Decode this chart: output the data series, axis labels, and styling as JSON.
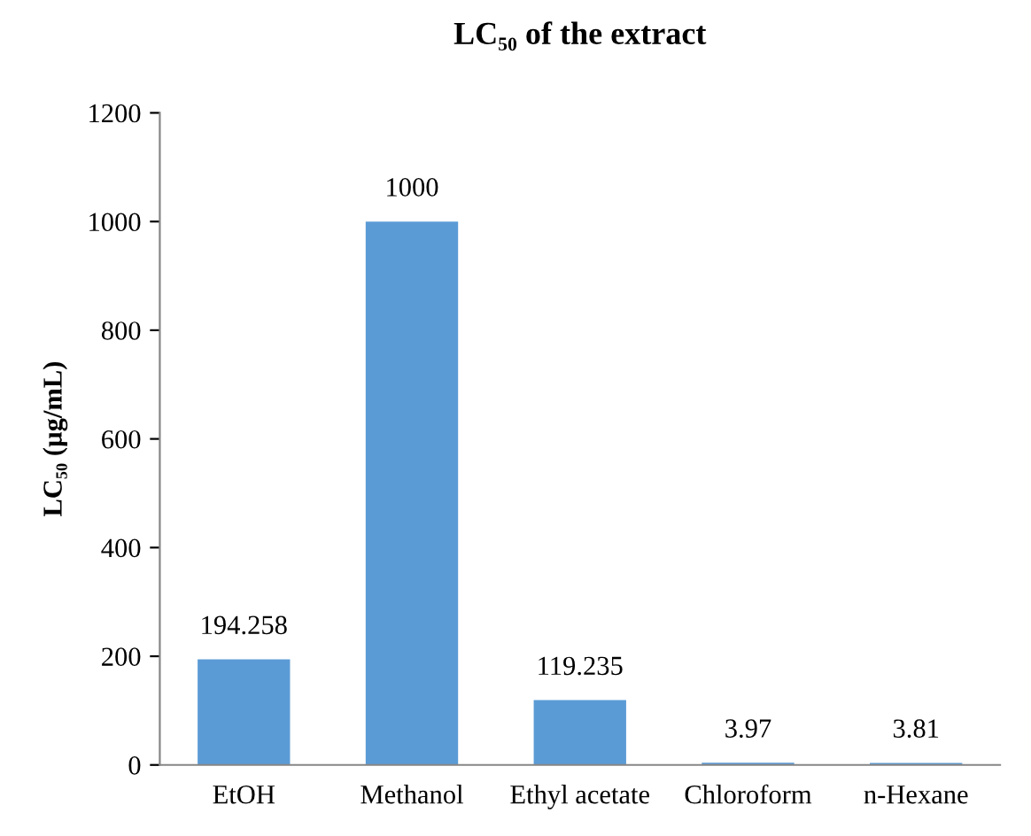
{
  "chart_data": {
    "type": "bar",
    "title": "LC₅₀ of the extract",
    "ylabel": "LC₅₀ (µg/mL)",
    "categories": [
      "EtOH",
      "Methanol",
      "Ethyl acetate",
      "Chloroform",
      "n-Hexane"
    ],
    "values": [
      194.258,
      1000,
      119.235,
      3.97,
      3.81
    ],
    "color": "#5b9bd5",
    "ylim": [
      0,
      1200
    ],
    "yticks": [
      0,
      200,
      400,
      600,
      800,
      1000,
      1200
    ],
    "data_labels": true
  }
}
